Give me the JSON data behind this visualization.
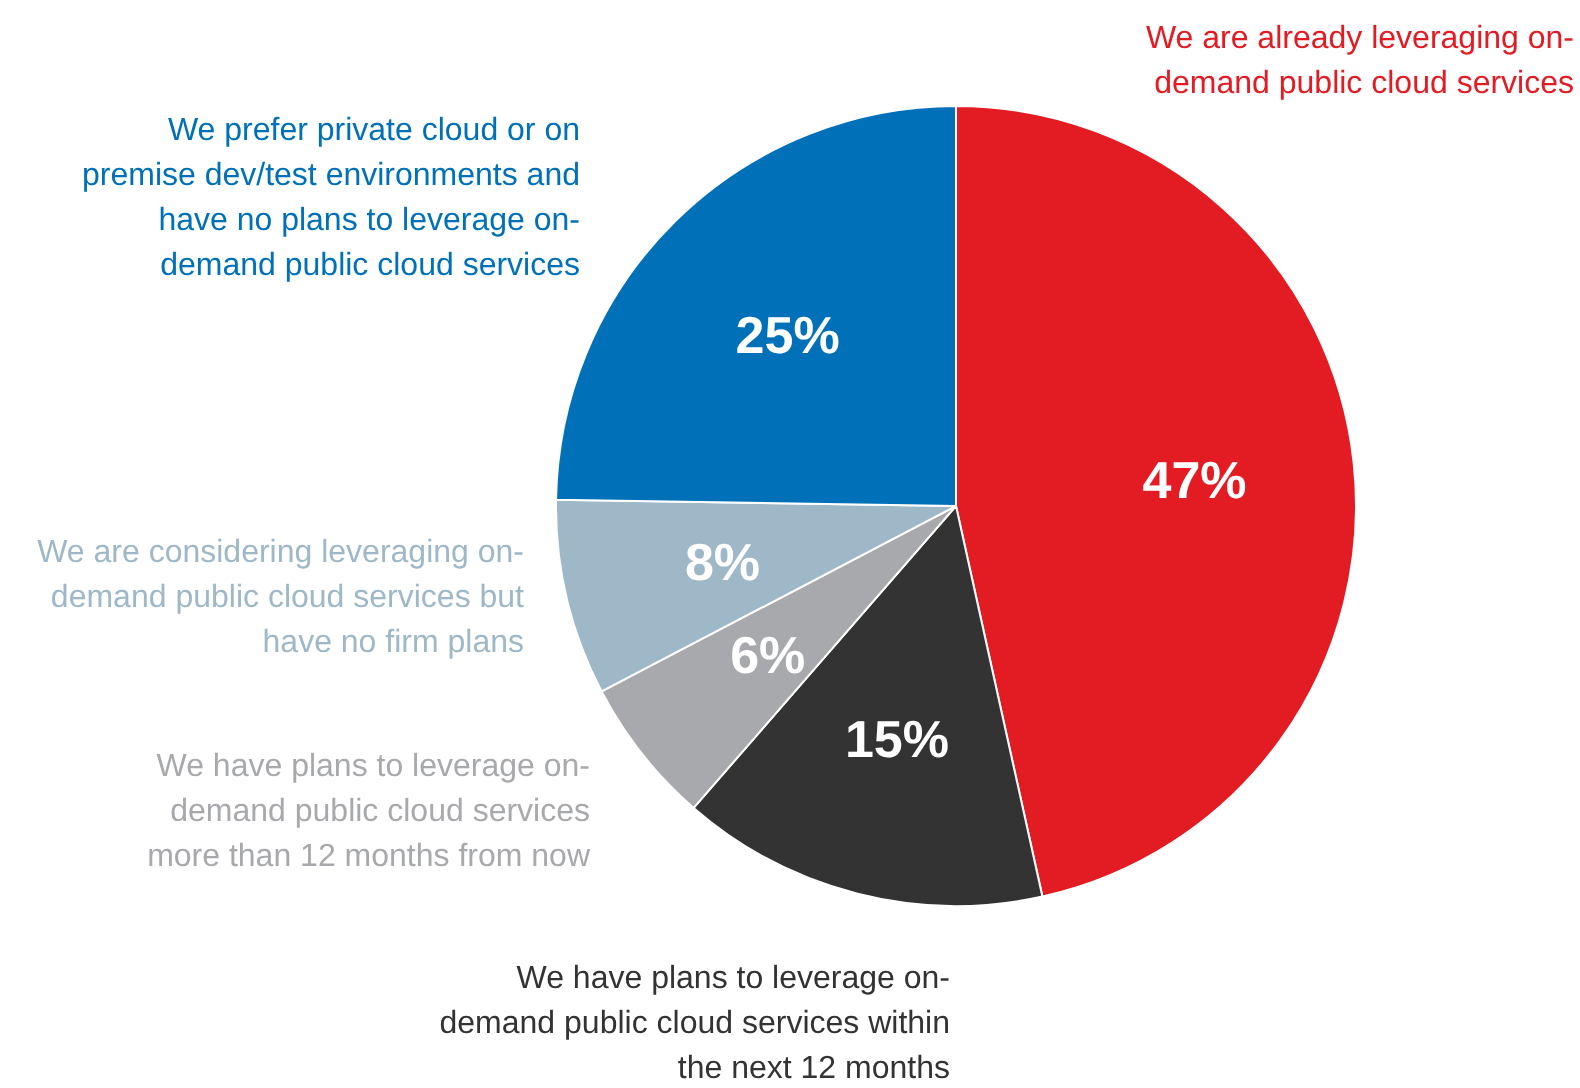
{
  "chart_data": {
    "type": "pie",
    "categories": [
      "We are already leveraging on-demand public cloud services",
      "We have plans to leverage on-demand public cloud services within the next 12 months",
      "We have plans to leverage on-demand public cloud services more than 12 months from now",
      "We are considering leveraging on-demand public cloud services but have no firm plans",
      "We prefer private cloud or on premise dev/test environments and have no plans to leverage on-demand public cloud services"
    ],
    "values": [
      47,
      15,
      6,
      8,
      25
    ],
    "colors": [
      "#e31b23",
      "#333333",
      "#a7a9ac",
      "#9fb8c8",
      "#0070b8"
    ],
    "value_labels": [
      "47%",
      "15%",
      "6%",
      "8%",
      "25%"
    ],
    "legend": false
  }
}
